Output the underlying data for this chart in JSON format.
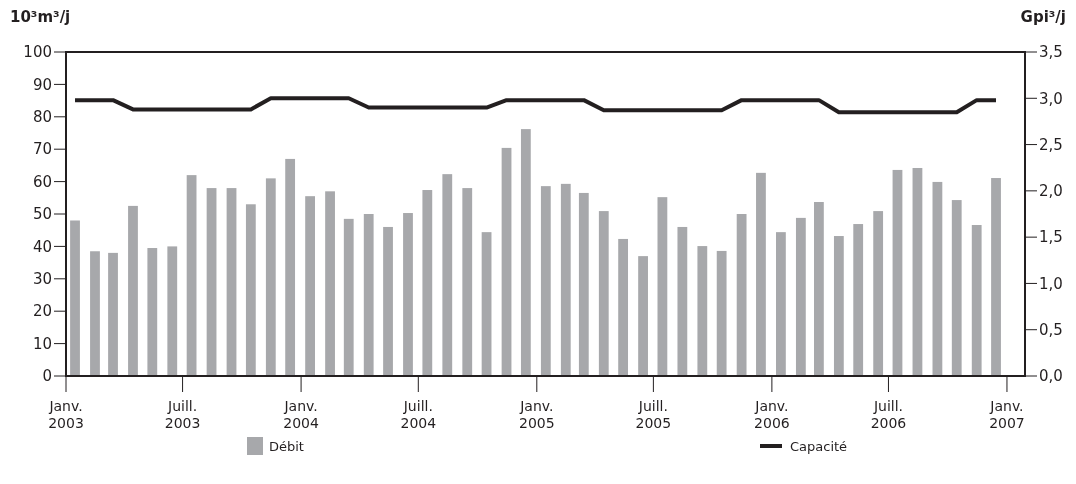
{
  "chart_data": {
    "type": "bar",
    "ylabel": "10³m³/j",
    "y2label": "Gpi³/j",
    "x": [
      "2003-01-15",
      "2003-02-15",
      "2003-03-15",
      "2003-04-15",
      "2003-05-15",
      "2003-06-15",
      "2003-07-15",
      "2003-08-15",
      "2003-09-15",
      "2003-10-15",
      "2003-11-15",
      "2003-12-15",
      "2004-01-15",
      "2004-02-15",
      "2004-03-15",
      "2004-04-15",
      "2004-05-15",
      "2004-06-15",
      "2004-07-15",
      "2004-08-15",
      "2004-09-15",
      "2004-10-15",
      "2004-11-15",
      "2004-12-15",
      "2005-01-15",
      "2005-02-15",
      "2005-03-15",
      "2005-04-15",
      "2005-05-15",
      "2005-06-15",
      "2005-07-15",
      "2005-08-15",
      "2005-09-15",
      "2005-10-15",
      "2005-11-15",
      "2005-12-15",
      "2006-01-15",
      "2006-02-15",
      "2006-03-15",
      "2006-04-15",
      "2006-05-15",
      "2006-06-15",
      "2006-07-15",
      "2006-08-15",
      "2006-09-15",
      "2006-10-15",
      "2006-11-15",
      "2006-12-15"
    ],
    "series": [
      {
        "name": "Débit",
        "color": "#a7a8ab",
        "values": [
          48,
          38.5,
          38,
          52.5,
          39.5,
          40,
          62,
          58,
          58,
          53,
          61,
          67,
          55.5,
          57,
          48.5,
          50,
          46,
          50.3,
          57.4,
          62.3,
          58,
          44.4,
          70.4,
          76.2,
          58.6,
          59.3,
          56.5,
          50.9,
          42.3,
          37,
          55.2,
          46,
          40.1,
          38.6,
          50,
          62.7,
          44.4,
          48.8,
          53.7,
          43.2,
          46.9,
          50.9,
          63.6,
          64.2,
          59.9,
          54.3,
          46.6,
          61.1
        ]
      },
      {
        "name": "Capacité",
        "type": "line",
        "axis": "y2",
        "color": "#231f20",
        "values": [
          2.98,
          2.98,
          2.98,
          2.88,
          2.88,
          2.88,
          2.88,
          2.88,
          2.88,
          2.88,
          3.0,
          3.0,
          3.0,
          3.0,
          3.0,
          2.9,
          2.9,
          2.9,
          2.9,
          2.9,
          2.9,
          2.9,
          2.98,
          2.98,
          2.98,
          2.98,
          2.98,
          2.87,
          2.87,
          2.87,
          2.87,
          2.87,
          2.87,
          2.87,
          2.98,
          2.98,
          2.98,
          2.98,
          2.98,
          2.85,
          2.85,
          2.85,
          2.85,
          2.85,
          2.85,
          2.85,
          2.98,
          2.98
        ]
      }
    ],
    "xlim": [
      "2003-01-01",
      "2007-01-29"
    ],
    "xticks": [
      {
        "value": "2003-01-01",
        "label": "Janv.\n2003"
      },
      {
        "value": "2003-07-01",
        "label": "Juill.\n2003"
      },
      {
        "value": "2004-01-01",
        "label": "Janv.\n2004"
      },
      {
        "value": "2004-07-01",
        "label": "Juill.\n2004"
      },
      {
        "value": "2005-01-01",
        "label": "Janv.\n2005"
      },
      {
        "value": "2005-07-01",
        "label": "Juill.\n2005"
      },
      {
        "value": "2006-01-01",
        "label": "Janv.\n2006"
      },
      {
        "value": "2006-07-01",
        "label": "Juill.\n2006"
      },
      {
        "value": "2007-01-01",
        "label": "Janv.\n2007"
      }
    ],
    "ylim": [
      0,
      100
    ],
    "yticks": [
      0,
      10,
      20,
      30,
      40,
      50,
      60,
      70,
      80,
      90,
      100
    ],
    "y2lim": [
      0,
      3.5
    ],
    "y2ticks": [
      {
        "value": 0,
        "label": "0,0"
      },
      {
        "value": 0.5,
        "label": "0,5"
      },
      {
        "value": 1,
        "label": "1,0"
      },
      {
        "value": 1.5,
        "label": "1,5"
      },
      {
        "value": 2,
        "label": "2,0"
      },
      {
        "value": 2.5,
        "label": "2,5"
      },
      {
        "value": 3,
        "label": "3,0"
      },
      {
        "value": 3.5,
        "label": "3,5"
      }
    ],
    "legend": "bottom"
  }
}
